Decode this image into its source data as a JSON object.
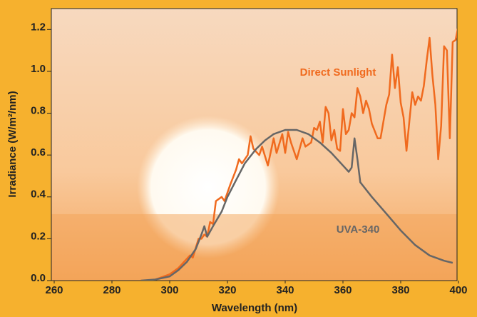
{
  "chart_data": {
    "type": "line",
    "x_label": "Wavelength (nm)",
    "y_label": "Irradiance (W/m²/nm)",
    "xlim": [
      260,
      400
    ],
    "xticks": [
      260,
      280,
      300,
      320,
      340,
      360,
      380,
      400
    ],
    "ylim": [
      0,
      1.3
    ],
    "yticks": [
      {
        "value": 0,
        "label": "0.0"
      },
      0.2,
      0.4,
      0.6,
      0.8,
      {
        "value": 1,
        "label": "1.0"
      },
      1.2
    ],
    "series": [
      {
        "name": "Direct Sunlight",
        "color": "#f06a1e",
        "x": [
          295,
          300,
          303,
          305,
          307,
          308,
          310,
          311,
          312,
          313,
          314,
          315,
          316,
          318,
          319,
          321,
          323,
          324,
          325,
          327,
          328,
          329,
          331,
          332,
          334,
          336,
          337,
          339,
          340,
          341,
          342,
          344,
          346,
          347,
          349,
          350,
          351,
          352,
          353,
          354,
          355,
          356,
          357,
          358,
          359,
          360,
          361,
          362,
          363,
          364,
          365,
          366,
          367,
          368,
          369,
          370,
          372,
          373,
          375,
          376,
          377,
          378,
          379,
          380,
          381,
          382,
          383,
          384,
          385,
          386,
          387,
          388,
          389,
          390,
          391,
          392,
          393,
          394,
          395,
          396,
          397,
          398,
          399,
          400
        ],
        "values": [
          0.005,
          0.03,
          0.06,
          0.09,
          0.12,
          0.11,
          0.2,
          0.2,
          0.22,
          0.21,
          0.28,
          0.27,
          0.38,
          0.4,
          0.38,
          0.46,
          0.53,
          0.58,
          0.56,
          0.6,
          0.69,
          0.63,
          0.6,
          0.64,
          0.55,
          0.68,
          0.61,
          0.7,
          0.61,
          0.71,
          0.66,
          0.58,
          0.68,
          0.64,
          0.66,
          0.73,
          0.72,
          0.76,
          0.66,
          0.83,
          0.8,
          0.67,
          0.72,
          0.63,
          0.62,
          0.82,
          0.7,
          0.72,
          0.8,
          0.78,
          0.92,
          0.88,
          0.8,
          0.86,
          0.82,
          0.75,
          0.68,
          0.68,
          0.84,
          0.89,
          1.08,
          0.92,
          1.02,
          0.85,
          0.78,
          0.62,
          0.76,
          0.9,
          0.84,
          0.88,
          0.86,
          0.93,
          1.05,
          1.16,
          0.98,
          0.84,
          0.58,
          0.74,
          1.12,
          1.1,
          0.68,
          1.14,
          1.15,
          1.22
        ]
      },
      {
        "name": "UVA-340",
        "color": "#666666",
        "x": [
          290,
          295,
          300,
          303,
          306,
          309,
          311,
          312,
          313,
          315,
          318,
          320,
          323,
          326,
          330,
          333,
          336,
          340,
          344,
          348,
          352,
          356,
          360,
          362,
          363,
          364,
          365,
          366,
          370,
          375,
          380,
          385,
          390,
          395,
          398
        ],
        "values": [
          0,
          0.005,
          0.02,
          0.05,
          0.09,
          0.15,
          0.22,
          0.26,
          0.21,
          0.26,
          0.33,
          0.4,
          0.48,
          0.56,
          0.63,
          0.67,
          0.7,
          0.72,
          0.72,
          0.7,
          0.66,
          0.61,
          0.55,
          0.52,
          0.54,
          0.68,
          0.58,
          0.47,
          0.4,
          0.32,
          0.24,
          0.17,
          0.12,
          0.095,
          0.085
        ]
      }
    ]
  }
}
